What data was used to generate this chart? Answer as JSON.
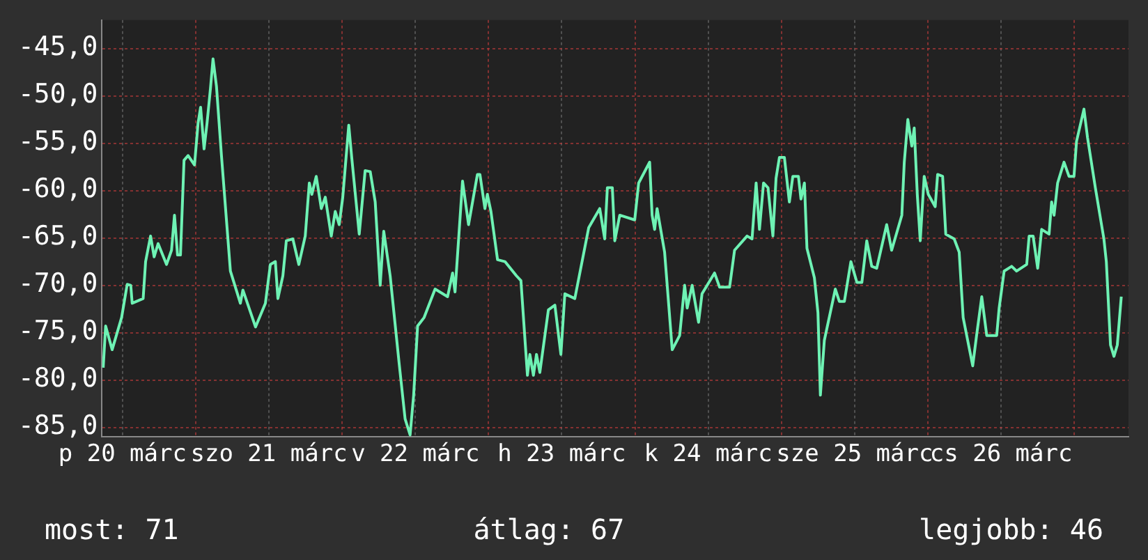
{
  "chart_data": {
    "type": "line",
    "grid": true,
    "legend": false,
    "marker": "none",
    "line_style": "solid",
    "xlim": [
      "--03-20T08:38",
      "--03-27T08:53"
    ],
    "xticks": [
      {
        "value": "--03-20T12:00",
        "label": "p 20 márc"
      },
      {
        "value": "--03-21T00:00",
        "label": null
      },
      {
        "value": "--03-21T12:00",
        "label": "szo 21 márc"
      },
      {
        "value": "--03-22T00:00",
        "label": null
      },
      {
        "value": "--03-22T12:00",
        "label": "v 22 márc"
      },
      {
        "value": "--03-23T00:00",
        "label": null
      },
      {
        "value": "--03-23T12:00",
        "label": "h 23 márc"
      },
      {
        "value": "--03-24T00:00",
        "label": null
      },
      {
        "value": "--03-24T12:00",
        "label": "k 24 márc"
      },
      {
        "value": "--03-25T00:00",
        "label": null
      },
      {
        "value": "--03-25T12:00",
        "label": "sze 25 márc"
      },
      {
        "value": "--03-26T00:00",
        "label": null
      },
      {
        "value": "--03-26T12:00",
        "label": "cs 26 márc"
      },
      {
        "value": "--03-27T00:00",
        "label": null
      }
    ],
    "ylim": [
      -86,
      -42
    ],
    "yticks": [
      {
        "value": -85,
        "label": "-85,0"
      },
      {
        "value": -80,
        "label": "-80,0"
      },
      {
        "value": -75,
        "label": "-75,0"
      },
      {
        "value": -70,
        "label": "-70,0"
      },
      {
        "value": -65,
        "label": "-65,0"
      },
      {
        "value": -60,
        "label": "-60,0"
      },
      {
        "value": -55,
        "label": "-55,0"
      },
      {
        "value": -50,
        "label": "-50,0"
      },
      {
        "value": -45,
        "label": "-45,0"
      }
    ],
    "annotations": [
      "most: 71",
      "átlag: 67",
      "legjobb: 46"
    ],
    "series": [
      {
        "color": "#6ef2b4",
        "x": [
          "--03-20T08:50",
          "--03-20T09:14",
          "--03-20T10:18",
          "--03-20T11:51",
          "--03-20T12:46",
          "--03-20T13:21",
          "--03-20T13:35",
          "--03-20T15:23",
          "--03-20T15:47",
          "--03-20T16:36",
          "--03-20T17:11",
          "--03-20T17:50",
          "--03-20T19:13",
          "--03-20T20:02",
          "--03-20T20:31",
          "--03-20T21:01",
          "--03-20T21:30",
          "--03-20T22:05",
          "--03-20T22:45",
          "--03-20T23:48",
          "--03-21T00:23",
          "--03-21T00:48",
          "--03-21T01:22",
          "--03-21T01:51",
          "--03-21T02:25",
          "--03-21T02:50",
          "--03-21T03:24",
          "--03-21T04:13",
          "--03-21T05:41",
          "--03-21T07:19",
          "--03-21T07:44",
          "--03-21T09:48",
          "--03-21T11:25",
          "--03-21T12:14",
          "--03-21T13:03",
          "--03-21T13:28",
          "--03-21T14:17",
          "--03-21T14:51",
          "--03-21T15:55",
          "--03-21T16:54",
          "--03-21T17:57",
          "--03-21T18:37",
          "--03-21T19:02",
          "--03-21T19:45",
          "--03-21T20:35",
          "--03-21T21:14",
          "--03-21T22:13",
          "--03-21T22:52",
          "--03-21T23:31",
          "--03-22T00:06",
          "--03-22T01:05",
          "--03-22T01:34",
          "--03-22T02:48",
          "--03-22T03:46",
          "--03-22T04:36",
          "--03-22T05:25",
          "--03-22T06:14",
          "--03-22T06:49",
          "--03-22T07:52",
          "--03-22T09:20",
          "--03-22T10:19",
          "--03-22T11:08",
          "--03-22T11:43",
          "--03-22T12:22",
          "--03-22T13:26",
          "--03-22T15:14",
          "--03-22T17:17",
          "--03-22T18:06",
          "--03-22T18:30",
          "--03-22T19:44",
          "--03-22T20:43",
          "--03-22T22:10",
          "--03-22T22:35",
          "--03-22T23:24",
          "--03-22T23:48",
          "--03-23T00:23",
          "--03-23T01:28",
          "--03-23T02:41",
          "--03-23T04:34",
          "--03-23T05:18",
          "--03-23T06:22",
          "--03-23T06:46",
          "--03-23T07:21",
          "--03-23T07:51",
          "--03-23T08:24",
          "--03-23T09:48",
          "--03-23T10:52",
          "--03-23T11:51",
          "--03-23T12:30",
          "--03-23T14:08",
          "--03-23T16:25",
          "--03-23T18:13",
          "--03-23T19:02",
          "--03-23T19:28",
          "--03-23T20:17",
          "--03-23T20:41",
          "--03-23T21:30",
          "--03-23T23:57",
          "--03-24T00:36",
          "--03-24T02:24",
          "--03-24T02:48",
          "--03-24T03:13",
          "--03-24T03:37",
          "--03-24T04:51",
          "--03-24T06:06",
          "--03-24T07:19",
          "--03-24T08:08",
          "--03-24T08:33",
          "--03-24T09:22",
          "--03-24T10:25",
          "--03-24T10:59",
          "--03-24T13:02",
          "--03-24T13:52",
          "--03-24T15:30",
          "--03-24T16:19",
          "--03-24T18:22",
          "--03-24T19:11",
          "--03-24T19:51",
          "--03-24T20:24",
          "--03-24T21:04",
          "--03-24T21:48",
          "--03-24T22:36",
          "--03-24T23:07",
          "--03-24T23:40",
          "--03-25T00:29",
          "--03-25T01:18",
          "--03-25T01:52",
          "--03-25T02:47",
          "--03-25T03:12",
          "--03-25T03:46",
          "--03-25T04:11",
          "--03-25T05:24",
          "--03-25T05:59",
          "--03-25T06:23",
          "--03-25T07:02",
          "--03-25T08:50",
          "--03-25T09:29",
          "--03-25T10:19",
          "--03-25T11:23",
          "--03-25T12:22",
          "--03-25T13:11",
          "--03-25T13:59",
          "--03-25T14:48",
          "--03-25T15:37",
          "--03-25T17:15",
          "--03-25T18:04",
          "--03-25T19:44",
          "--03-25T20:08",
          "--03-25T20:43",
          "--03-25T21:22",
          "--03-25T21:46",
          "--03-25T22:16",
          "--03-25T22:45",
          "--03-25T23:24",
          "--03-26T00:04",
          "--03-26T01:12",
          "--03-26T01:36",
          "--03-26T02:25",
          "--03-26T02:56",
          "--03-26T04:19",
          "--03-26T05:08",
          "--03-26T05:47",
          "--03-26T07:21",
          "--03-26T07:59",
          "--03-26T08:50",
          "--03-26T09:39",
          "--03-26T11:17",
          "--03-26T11:41",
          "--03-26T12:30",
          "--03-26T13:44",
          "--03-26T14:33",
          "--03-26T16:12",
          "--03-26T16:36",
          "--03-26T17:15",
          "--03-26T18:00",
          "--03-26T18:39",
          "--03-26T19:52",
          "--03-26T20:17",
          "--03-26T20:41",
          "--03-26T21:16",
          "--03-26T22:19",
          "--03-26T23:08",
          "--03-26T23:57",
          "--03-27T00:22",
          "--03-27T01:35",
          "--03-27T02:10",
          "--03-27T03:27",
          "--03-27T04:51",
          "--03-27T05:15",
          "--03-27T05:56",
          "--03-27T06:30",
          "--03-27T07:03",
          "--03-27T07:42"
        ],
        "values": [
          -78.7,
          -74.3,
          -76.8,
          -73.4,
          -69.9,
          -70.0,
          -71.9,
          -71.4,
          -67.5,
          -64.8,
          -67.0,
          -65.6,
          -67.8,
          -66.3,
          -62.6,
          -66.8,
          -66.8,
          -56.8,
          -56.3,
          -57.3,
          -52.9,
          -51.2,
          -55.6,
          -52.9,
          -49.2,
          -46.1,
          -49.0,
          -56.3,
          -68.5,
          -71.9,
          -70.5,
          -74.4,
          -71.9,
          -67.8,
          -67.5,
          -71.4,
          -69.0,
          -65.3,
          -65.1,
          -67.8,
          -64.8,
          -59.2,
          -60.4,
          -58.5,
          -61.9,
          -60.7,
          -64.8,
          -62.2,
          -63.6,
          -60.7,
          -53.1,
          -56.5,
          -64.6,
          -57.9,
          -58.0,
          -61.2,
          -70.0,
          -64.3,
          -69.0,
          -78.2,
          -84.1,
          -85.8,
          -81.6,
          -74.3,
          -73.4,
          -70.4,
          -71.2,
          -68.7,
          -70.7,
          -59.0,
          -63.6,
          -58.3,
          -58.3,
          -61.9,
          -60.4,
          -62.2,
          -67.3,
          -67.5,
          -69.0,
          -69.5,
          -79.5,
          -77.3,
          -79.5,
          -77.3,
          -79.2,
          -72.6,
          -72.1,
          -77.3,
          -70.9,
          -71.4,
          -63.9,
          -61.9,
          -65.1,
          -59.7,
          -59.7,
          -65.3,
          -62.6,
          -63.1,
          -59.2,
          -57.0,
          -62.6,
          -64.1,
          -61.9,
          -66.5,
          -76.8,
          -75.3,
          -70.0,
          -72.4,
          -70.0,
          -73.9,
          -70.9,
          -68.7,
          -70.2,
          -70.2,
          -66.3,
          -64.8,
          -65.1,
          -59.2,
          -64.1,
          -59.2,
          -59.7,
          -64.8,
          -58.7,
          -56.5,
          -56.5,
          -61.2,
          -58.5,
          -58.5,
          -60.9,
          -59.2,
          -66.1,
          -69.2,
          -72.9,
          -81.6,
          -75.8,
          -70.4,
          -71.7,
          -71.7,
          -67.5,
          -69.7,
          -69.7,
          -65.3,
          -68.0,
          -68.2,
          -63.6,
          -66.3,
          -62.6,
          -57.0,
          -52.5,
          -55.3,
          -53.4,
          -60.4,
          -65.3,
          -58.5,
          -60.4,
          -61.7,
          -58.3,
          -58.5,
          -64.6,
          -65.1,
          -66.5,
          -73.4,
          -78.5,
          -75.3,
          -71.2,
          -75.3,
          -75.3,
          -72.4,
          -68.5,
          -68.0,
          -68.5,
          -67.8,
          -64.8,
          -64.8,
          -68.2,
          -64.1,
          -64.6,
          -61.2,
          -62.6,
          -59.2,
          -57.0,
          -58.5,
          -58.5,
          -54.8,
          -51.4,
          -54.4,
          -59.7,
          -65.1,
          -67.5,
          -76.3,
          -77.5,
          -76.3,
          -71.2
        ]
      }
    ]
  }
}
